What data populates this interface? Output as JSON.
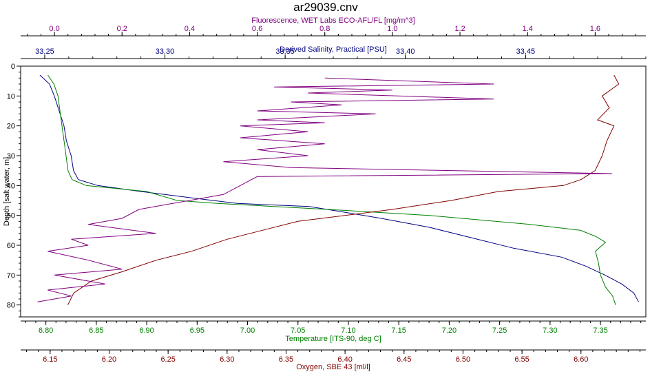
{
  "chart_data": {
    "type": "line",
    "title": "ar29039.cnv",
    "y_axis": {
      "label": "Depth [salt water, m]",
      "range": [
        0,
        84
      ],
      "ticks": [
        0,
        10,
        20,
        30,
        40,
        50,
        60,
        70,
        80
      ],
      "inverted": true
    },
    "x_axes": [
      {
        "key": "fluor",
        "label": "Fluorescence, WET Labs ECO-AFL/FL [mg/m^3]",
        "position": "top-1",
        "color": "#800080",
        "range": [
          -0.1,
          1.75
        ],
        "ticks": [
          0.0,
          0.2,
          0.4,
          0.6,
          0.8,
          1.0,
          1.2,
          1.4,
          1.6
        ],
        "tick_labels": [
          "0.0",
          "0.2",
          "0.4",
          "0.6",
          "0.8",
          "1.0",
          "1.2",
          "1.4",
          "1.6"
        ]
      },
      {
        "key": "sal",
        "label": "Derived Salinity, Practical [PSU]",
        "position": "top-2",
        "color": "#000080",
        "range": [
          33.24,
          33.5
        ],
        "ticks": [
          33.25,
          33.3,
          33.35,
          33.4,
          33.45
        ],
        "tick_labels": [
          "33.25",
          "33.30",
          "33.35",
          "33.40",
          "33.45"
        ]
      },
      {
        "key": "temp",
        "label": "Temperature [ITS-90, deg C]",
        "position": "bottom-1",
        "color": "#008000",
        "range": [
          6.775,
          7.395
        ],
        "ticks": [
          6.8,
          6.85,
          6.9,
          6.95,
          7.0,
          7.05,
          7.1,
          7.15,
          7.2,
          7.25,
          7.3,
          7.35
        ],
        "tick_labels": [
          "6.80",
          "6.85",
          "6.90",
          "6.95",
          "7.00",
          "7.05",
          "7.10",
          "7.15",
          "7.20",
          "7.25",
          "7.30",
          "7.35"
        ]
      },
      {
        "key": "oxy",
        "label": "Oxygen, SBE 43 [ml/l]",
        "position": "bottom-2",
        "color": "#800000",
        "range": [
          6.125,
          6.655
        ],
        "ticks": [
          6.15,
          6.2,
          6.25,
          6.3,
          6.35,
          6.4,
          6.45,
          6.5,
          6.55,
          6.6
        ],
        "tick_labels": [
          "6.15",
          "6.20",
          "6.25",
          "6.30",
          "6.35",
          "6.40",
          "6.45",
          "6.50",
          "6.55",
          "6.60"
        ]
      }
    ],
    "series": [
      {
        "axis": "sal",
        "color": "#000080",
        "points": [
          [
            33.248,
            3
          ],
          [
            33.252,
            6
          ],
          [
            33.254,
            10
          ],
          [
            33.256,
            15
          ],
          [
            33.258,
            20
          ],
          [
            33.259,
            25
          ],
          [
            33.261,
            30
          ],
          [
            33.262,
            35
          ],
          [
            33.264,
            38
          ],
          [
            33.272,
            40
          ],
          [
            33.29,
            42
          ],
          [
            33.31,
            44
          ],
          [
            33.33,
            46
          ],
          [
            33.36,
            47
          ],
          [
            33.375,
            49
          ],
          [
            33.39,
            51
          ],
          [
            33.41,
            54
          ],
          [
            33.425,
            57
          ],
          [
            33.445,
            61
          ],
          [
            33.465,
            64
          ],
          [
            33.475,
            67
          ],
          [
            33.483,
            70
          ],
          [
            33.49,
            73
          ],
          [
            33.495,
            76
          ],
          [
            33.497,
            79
          ]
        ]
      },
      {
        "axis": "temp",
        "color": "#008000",
        "points": [
          [
            6.802,
            3
          ],
          [
            6.808,
            6
          ],
          [
            6.812,
            10
          ],
          [
            6.814,
            15
          ],
          [
            6.816,
            20
          ],
          [
            6.818,
            25
          ],
          [
            6.82,
            30
          ],
          [
            6.822,
            35
          ],
          [
            6.826,
            38
          ],
          [
            6.84,
            40
          ],
          [
            6.9,
            42
          ],
          [
            6.93,
            45
          ],
          [
            6.97,
            46
          ],
          [
            7.08,
            48
          ],
          [
            7.18,
            50
          ],
          [
            7.28,
            53
          ],
          [
            7.33,
            55
          ],
          [
            7.345,
            57
          ],
          [
            7.355,
            59
          ],
          [
            7.345,
            62
          ],
          [
            7.348,
            66
          ],
          [
            7.35,
            70
          ],
          [
            7.355,
            74
          ],
          [
            7.362,
            77
          ],
          [
            7.365,
            80
          ]
        ]
      },
      {
        "axis": "oxy",
        "color": "#800000",
        "points": [
          [
            6.628,
            3
          ],
          [
            6.632,
            6
          ],
          [
            6.618,
            10
          ],
          [
            6.624,
            14
          ],
          [
            6.614,
            18
          ],
          [
            6.628,
            20
          ],
          [
            6.622,
            25
          ],
          [
            6.618,
            30
          ],
          [
            6.612,
            35
          ],
          [
            6.6,
            38
          ],
          [
            6.585,
            40
          ],
          [
            6.53,
            42
          ],
          [
            6.49,
            45
          ],
          [
            6.44,
            48
          ],
          [
            6.4,
            50
          ],
          [
            6.36,
            52
          ],
          [
            6.33,
            55
          ],
          [
            6.3,
            58
          ],
          [
            6.27,
            62
          ],
          [
            6.24,
            65
          ],
          [
            6.21,
            69
          ],
          [
            6.185,
            72
          ],
          [
            6.17,
            76
          ],
          [
            6.165,
            80
          ]
        ]
      },
      {
        "axis": "fluor",
        "color": "#800080",
        "points": [
          [
            0.8,
            4
          ],
          [
            1.3,
            6
          ],
          [
            0.65,
            7
          ],
          [
            1.0,
            8
          ],
          [
            0.75,
            9
          ],
          [
            1.3,
            11
          ],
          [
            0.7,
            12
          ],
          [
            0.85,
            13
          ],
          [
            0.6,
            15
          ],
          [
            0.95,
            16
          ],
          [
            0.6,
            18
          ],
          [
            0.8,
            19
          ],
          [
            0.55,
            20
          ],
          [
            0.75,
            22
          ],
          [
            0.55,
            24
          ],
          [
            0.8,
            26
          ],
          [
            0.6,
            28
          ],
          [
            0.75,
            30
          ],
          [
            0.5,
            32
          ],
          [
            0.7,
            34
          ],
          [
            1.65,
            36
          ],
          [
            0.6,
            37
          ],
          [
            0.55,
            40
          ],
          [
            0.5,
            43
          ],
          [
            0.4,
            45
          ],
          [
            0.35,
            46
          ],
          [
            0.25,
            48
          ],
          [
            0.2,
            51
          ],
          [
            0.1,
            53
          ],
          [
            0.3,
            56
          ],
          [
            0.05,
            58
          ],
          [
            0.1,
            60
          ],
          [
            -0.02,
            62
          ],
          [
            0.1,
            65
          ],
          [
            0.2,
            68
          ],
          [
            0.0,
            70
          ],
          [
            0.15,
            73
          ],
          [
            -0.02,
            75
          ],
          [
            0.05,
            77
          ],
          [
            -0.05,
            79
          ]
        ]
      }
    ]
  }
}
